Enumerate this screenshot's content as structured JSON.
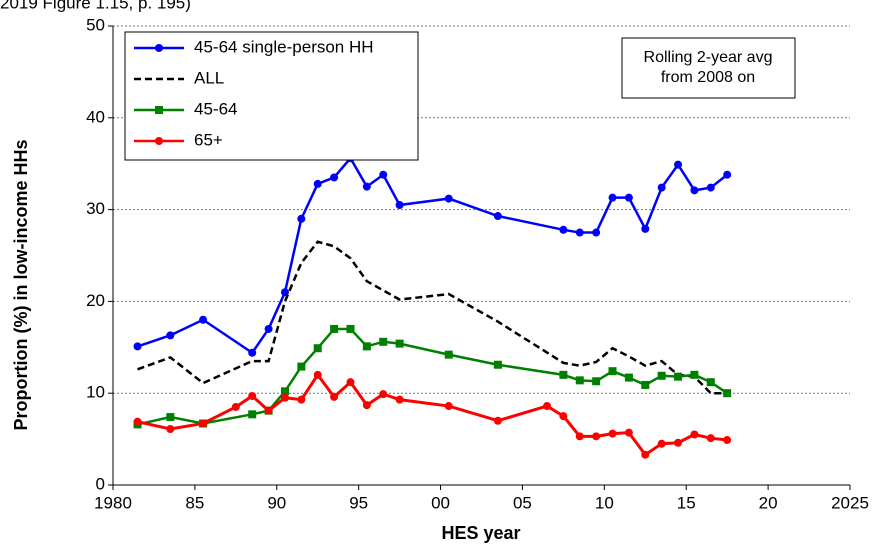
{
  "chart_data": {
    "type": "line",
    "note": "2019 Figure 1.15, p. 195)",
    "x_label": "HES year",
    "y_label": "Proportion (%) in low-income HHs",
    "annotation": [
      "Rolling 2-year avg",
      "from 2008 on"
    ],
    "xlim": [
      1980,
      2025
    ],
    "xticks": [
      {
        "value": 1980,
        "label": "1980"
      },
      {
        "value": 1985,
        "label": "85"
      },
      {
        "value": 1990,
        "label": "90"
      },
      {
        "value": 1995,
        "label": "95"
      },
      {
        "value": 2000,
        "label": "00"
      },
      {
        "value": 2005,
        "label": "05"
      },
      {
        "value": 2010,
        "label": "10"
      },
      {
        "value": 2015,
        "label": "15"
      },
      {
        "value": 2020,
        "label": "20"
      },
      {
        "value": 2025,
        "label": "2025"
      }
    ],
    "ylim": [
      0,
      50
    ],
    "yticks": [
      0,
      10,
      20,
      30,
      40,
      50
    ],
    "grid": true,
    "legend": "top-left",
    "series": [
      {
        "name": "45-64 single-person HH",
        "color": "#0000ff",
        "marker": "circle",
        "dashed": false,
        "x": [
          1981.5,
          1983.5,
          1985.5,
          1988.5,
          1989.5,
          1990.5,
          1991.5,
          1992.5,
          1993.5,
          1994.5,
          1995.5,
          1996.5,
          1997.5,
          2000.5,
          2003.5,
          2007.5,
          2008.5,
          2009.5,
          2010.5,
          2011.5,
          2012.5,
          2013.5,
          2014.5,
          2015.5,
          2016.5,
          2017.5
        ],
        "values": [
          15.1,
          16.3,
          18.0,
          14.4,
          17.0,
          21.0,
          29.0,
          32.8,
          33.5,
          35.6,
          32.5,
          33.8,
          30.5,
          31.2,
          29.3,
          27.8,
          27.5,
          27.5,
          31.3,
          31.3,
          27.9,
          32.4,
          34.9,
          32.1,
          32.4,
          33.8
        ]
      },
      {
        "name": "ALL",
        "color": "#000000",
        "marker": "none",
        "dashed": true,
        "x": [
          1981.5,
          1983.5,
          1985.5,
          1988.5,
          1989.5,
          1990.5,
          1991.5,
          1992.5,
          1993.5,
          1994.5,
          1995.5,
          1996.5,
          1997.5,
          2000.5,
          2003.5,
          2007.5,
          2008.5,
          2009.5,
          2010.5,
          2011.5,
          2012.5,
          2013.5,
          2014.5,
          2015.5,
          2016.5,
          2017.5
        ],
        "values": [
          12.6,
          13.9,
          11.1,
          13.5,
          13.5,
          20.0,
          24.2,
          26.5,
          26.0,
          24.7,
          22.2,
          21.2,
          20.2,
          20.8,
          17.8,
          13.3,
          13.0,
          13.4,
          14.9,
          14.0,
          13.0,
          13.5,
          12.0,
          11.8,
          10.0,
          10.0
        ]
      },
      {
        "name": "45-64",
        "color": "#008000",
        "marker": "square",
        "dashed": false,
        "x": [
          1981.5,
          1983.5,
          1985.5,
          1988.5,
          1989.5,
          1990.5,
          1991.5,
          1992.5,
          1993.5,
          1994.5,
          1995.5,
          1996.5,
          1997.5,
          2000.5,
          2003.5,
          2007.5,
          2008.5,
          2009.5,
          2010.5,
          2011.5,
          2012.5,
          2013.5,
          2014.5,
          2015.5,
          2016.5,
          2017.5
        ],
        "values": [
          6.6,
          7.4,
          6.7,
          7.7,
          8.1,
          10.2,
          12.9,
          14.9,
          17.0,
          17.0,
          15.1,
          15.6,
          15.4,
          14.2,
          13.1,
          12.0,
          11.4,
          11.3,
          12.4,
          11.7,
          10.9,
          11.9,
          11.8,
          12.0,
          11.2,
          10.0
        ]
      },
      {
        "name": "65+",
        "color": "#ff0000",
        "marker": "circle",
        "dashed": false,
        "x": [
          1981.5,
          1983.5,
          1985.5,
          1987.5,
          1988.5,
          1989.5,
          1990.5,
          1991.5,
          1992.5,
          1993.5,
          1994.5,
          1995.5,
          1996.5,
          1997.5,
          2000.5,
          2003.5,
          2006.5,
          2007.5,
          2008.5,
          2009.5,
          2010.5,
          2011.5,
          2012.5,
          2013.5,
          2014.5,
          2015.5,
          2016.5,
          2017.5
        ],
        "values": [
          6.9,
          6.1,
          6.7,
          8.5,
          9.7,
          8.1,
          9.5,
          9.3,
          12.0,
          9.6,
          11.2,
          8.7,
          9.9,
          9.3,
          8.6,
          7.0,
          8.6,
          7.5,
          5.3,
          5.3,
          5.6,
          5.7,
          3.3,
          4.5,
          4.6,
          5.5,
          5.1,
          4.9
        ]
      }
    ]
  }
}
